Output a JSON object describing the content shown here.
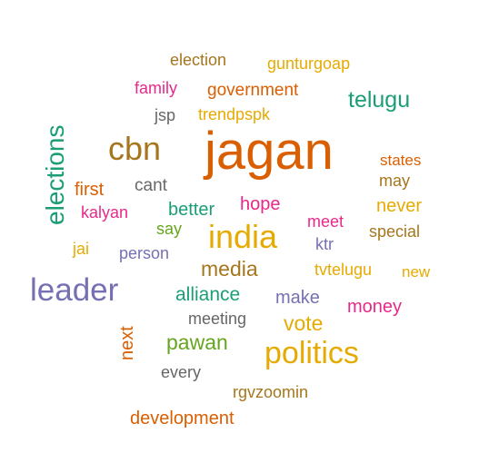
{
  "colors": {
    "orange": "#d95f02",
    "purple": "#7570b3",
    "teal": "#1b9e77",
    "magenta": "#e7298a",
    "gold": "#e6ab02",
    "brown": "#a6761d",
    "green": "#66a61e",
    "gray": "#666666"
  },
  "words": [
    {
      "text": "jagan",
      "color": "orange",
      "weight": 10
    },
    {
      "text": "politics",
      "color": "gold",
      "weight": 7
    },
    {
      "text": "leader",
      "color": "purple",
      "weight": 7
    },
    {
      "text": "india",
      "color": "gold",
      "weight": 7
    },
    {
      "text": "cbn",
      "color": "brown",
      "weight": 7
    },
    {
      "text": "elections",
      "color": "teal",
      "weight": 6
    },
    {
      "text": "telugu",
      "color": "teal",
      "weight": 4
    },
    {
      "text": "media",
      "color": "brown",
      "weight": 4
    },
    {
      "text": "pawan",
      "color": "green",
      "weight": 4
    },
    {
      "text": "vote",
      "color": "gold",
      "weight": 4
    },
    {
      "text": "alliance",
      "color": "teal",
      "weight": 3
    },
    {
      "text": "better",
      "color": "teal",
      "weight": 3
    },
    {
      "text": "make",
      "color": "purple",
      "weight": 3
    },
    {
      "text": "money",
      "color": "magenta",
      "weight": 3
    },
    {
      "text": "government",
      "color": "orange",
      "weight": 3
    },
    {
      "text": "first",
      "color": "orange",
      "weight": 3
    },
    {
      "text": "never",
      "color": "gold",
      "weight": 3
    },
    {
      "text": "hope",
      "color": "magenta",
      "weight": 3
    },
    {
      "text": "next",
      "color": "orange",
      "weight": 3
    },
    {
      "text": "development",
      "color": "orange",
      "weight": 3
    },
    {
      "text": "election",
      "color": "brown",
      "weight": 2
    },
    {
      "text": "family",
      "color": "magenta",
      "weight": 2
    },
    {
      "text": "gunturgoap",
      "color": "gold",
      "weight": 2
    },
    {
      "text": "jsp",
      "color": "gray",
      "weight": 2
    },
    {
      "text": "trendpspk",
      "color": "gold",
      "weight": 2
    },
    {
      "text": "states",
      "color": "orange",
      "weight": 2
    },
    {
      "text": "may",
      "color": "brown",
      "weight": 2
    },
    {
      "text": "cant",
      "color": "gray",
      "weight": 2
    },
    {
      "text": "kalyan",
      "color": "magenta",
      "weight": 2
    },
    {
      "text": "say",
      "color": "green",
      "weight": 2
    },
    {
      "text": "meet",
      "color": "magenta",
      "weight": 2
    },
    {
      "text": "special",
      "color": "brown",
      "weight": 2
    },
    {
      "text": "jai",
      "color": "gold",
      "weight": 2
    },
    {
      "text": "person",
      "color": "purple",
      "weight": 2
    },
    {
      "text": "ktr",
      "color": "purple",
      "weight": 2
    },
    {
      "text": "tvtelugu",
      "color": "gold",
      "weight": 2
    },
    {
      "text": "new",
      "color": "gold",
      "weight": 2
    },
    {
      "text": "meeting",
      "color": "gray",
      "weight": 2
    },
    {
      "text": "every",
      "color": "gray",
      "weight": 2
    },
    {
      "text": "rgvzoomin",
      "color": "brown",
      "weight": 2
    }
  ]
}
